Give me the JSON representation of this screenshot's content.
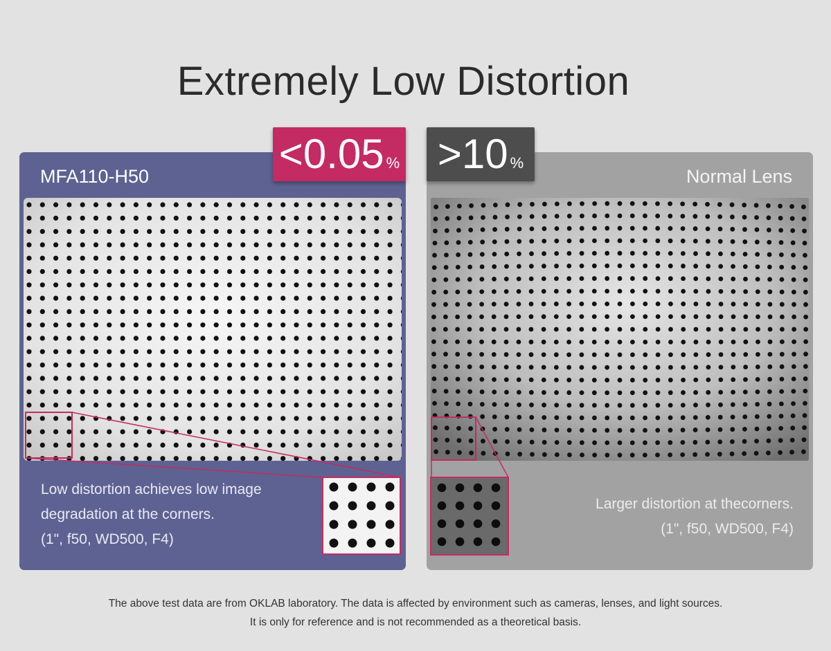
{
  "title": "Extremely Low Distortion",
  "left": {
    "badge_value": "<0.05",
    "badge_unit": "%",
    "label": "MFA110-H50",
    "caption": [
      "Low distortion achieves low image",
      "degradation at the corners.",
      "(1\", f50, WD500, F4)"
    ]
  },
  "right": {
    "badge_value": ">10",
    "badge_unit": "%",
    "label": "Normal Lens",
    "caption": [
      "Larger distortion at thecorners.",
      "(1\", f50, WD500, F4)"
    ]
  },
  "footnote": [
    "The above test data are from OKLAB laboratory. The data is affected by environment such as cameras, lenses, and light sources.",
    "It is only for reference and is not recommended as a theoretical basis."
  ],
  "colors": {
    "accent_pink": "#c42b62",
    "panel_purple": "#5e6292",
    "panel_gray": "#a2a2a2",
    "badge_gray": "#4d4d4d"
  }
}
